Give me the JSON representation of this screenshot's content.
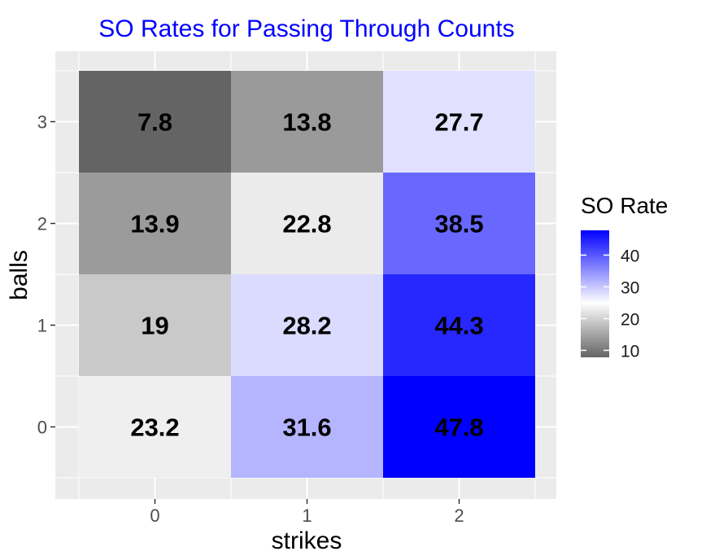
{
  "chart_data": {
    "type": "heatmap",
    "title": "SO Rates for Passing Through Counts",
    "xlabel": "strikes",
    "ylabel": "balls",
    "x_categories": [
      "0",
      "1",
      "2"
    ],
    "y_categories": [
      "0",
      "1",
      "2",
      "3"
    ],
    "cells": [
      {
        "strikes": "0",
        "balls": "3",
        "value": 7.8,
        "label": "7.8"
      },
      {
        "strikes": "1",
        "balls": "3",
        "value": 13.8,
        "label": "13.8"
      },
      {
        "strikes": "2",
        "balls": "3",
        "value": 27.7,
        "label": "27.7"
      },
      {
        "strikes": "0",
        "balls": "2",
        "value": 13.9,
        "label": "13.9"
      },
      {
        "strikes": "1",
        "balls": "2",
        "value": 22.8,
        "label": "22.8"
      },
      {
        "strikes": "2",
        "balls": "2",
        "value": 38.5,
        "label": "38.5"
      },
      {
        "strikes": "0",
        "balls": "1",
        "value": 19,
        "label": "19"
      },
      {
        "strikes": "1",
        "balls": "1",
        "value": 28.2,
        "label": "28.2"
      },
      {
        "strikes": "2",
        "balls": "1",
        "value": 44.3,
        "label": "44.3"
      },
      {
        "strikes": "0",
        "balls": "0",
        "value": 23.2,
        "label": "23.2"
      },
      {
        "strikes": "1",
        "balls": "0",
        "value": 31.6,
        "label": "31.6"
      },
      {
        "strikes": "2",
        "balls": "0",
        "value": 47.8,
        "label": "47.8"
      }
    ],
    "legend": {
      "title": "SO Rate",
      "breaks": [
        10,
        20,
        30,
        40
      ],
      "break_labels": [
        "10",
        "20",
        "30",
        "40"
      ],
      "range": [
        7.8,
        47.8
      ],
      "placement": "right"
    },
    "color_scale": {
      "low": "#646464",
      "mid": "#ffffff",
      "high": "#0000ff",
      "midpoint": 25
    },
    "colors": {
      "title": "#0000ff",
      "panel_background": "#ebebeb",
      "grid": "#ffffff"
    },
    "grid": true
  }
}
